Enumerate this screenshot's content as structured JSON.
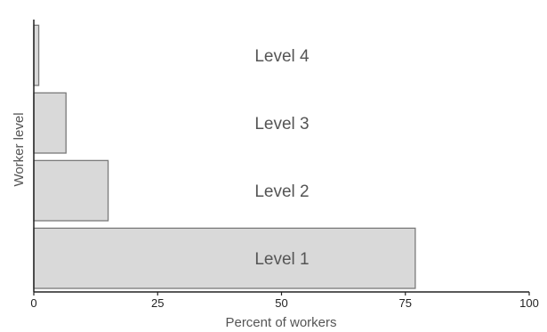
{
  "chart_data": {
    "type": "bar",
    "orientation": "horizontal",
    "categories": [
      "Level 1",
      "Level 2",
      "Level 3",
      "Level 4"
    ],
    "values": [
      77,
      15,
      6.5,
      1
    ],
    "xlabel": "Percent of workers",
    "ylabel": "Worker level",
    "xlim": [
      0,
      100
    ],
    "xticks": [
      0,
      25,
      50,
      75,
      100
    ],
    "bar_labels": [
      "Level 1",
      "Level 2",
      "Level 3",
      "Level 4"
    ],
    "colors": {
      "bar_fill": "#d9d9d9",
      "bar_stroke": "#7a7a7a",
      "axis": "#222222",
      "text": "#555555"
    },
    "grid": false,
    "legend": "none"
  }
}
